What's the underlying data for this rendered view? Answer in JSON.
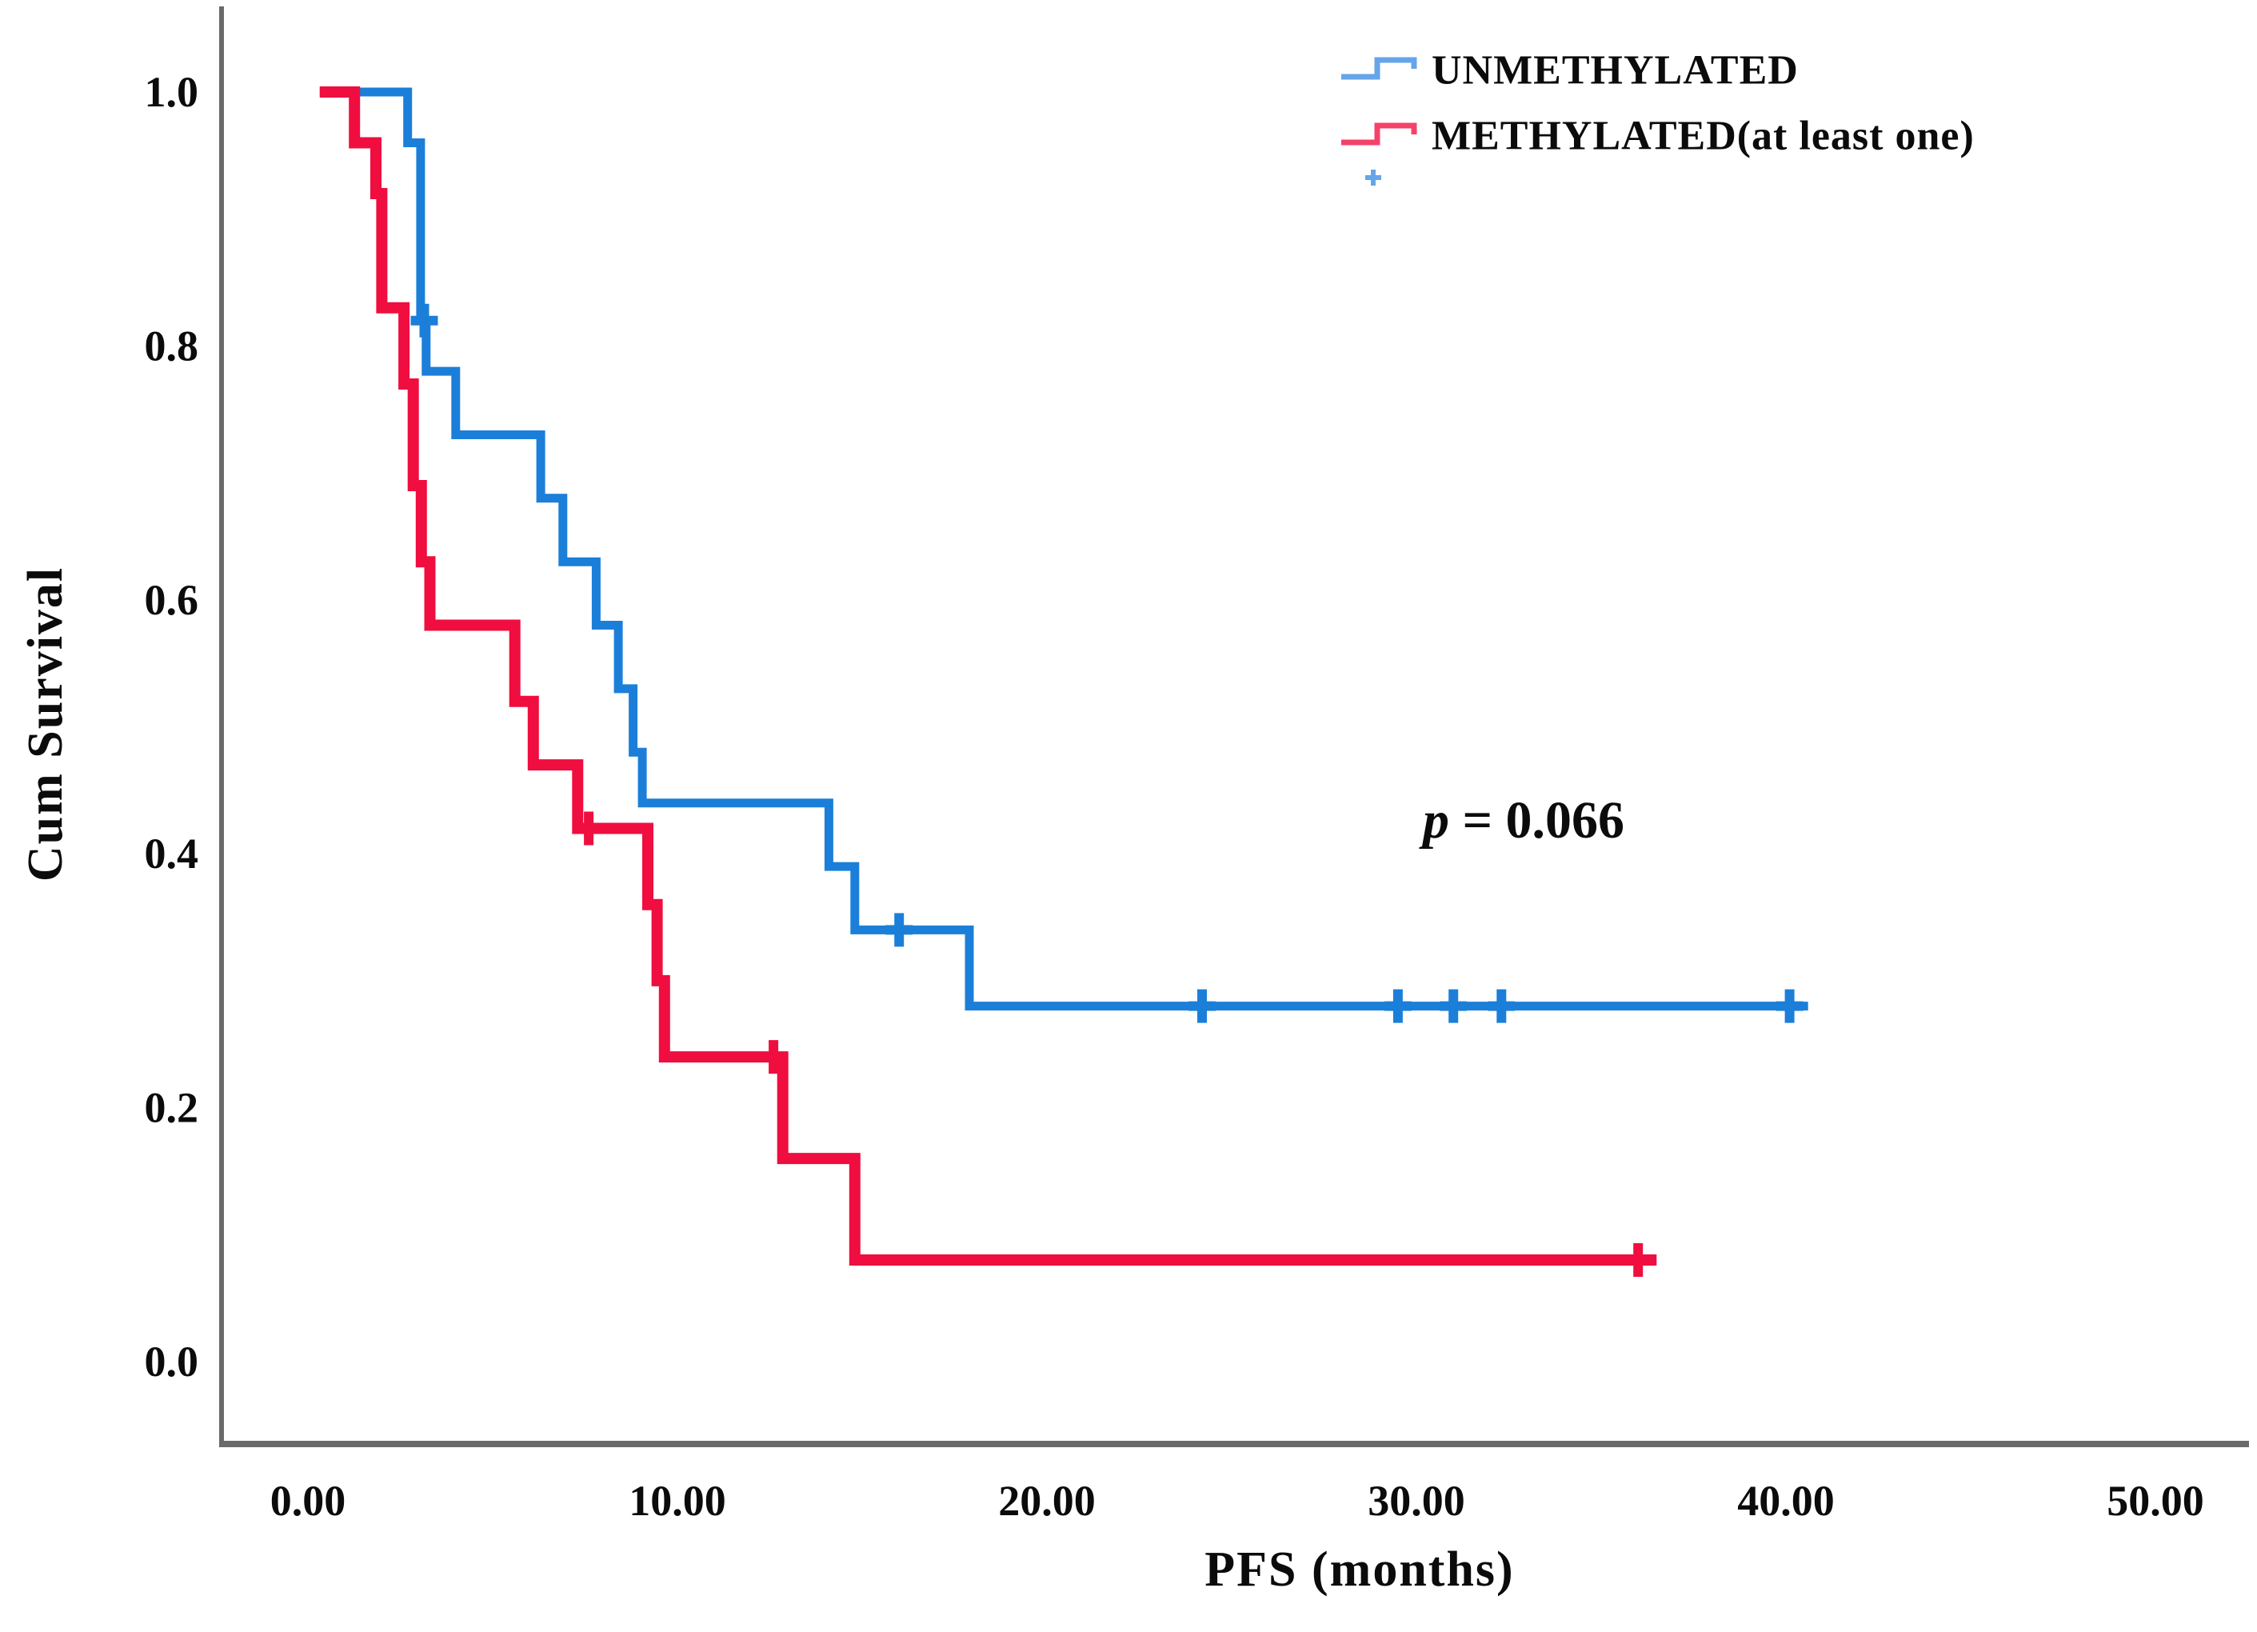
{
  "page": {
    "background": "#ffffff"
  },
  "chart_data": {
    "type": "line",
    "chart_kind": "kaplan_meier_step",
    "title": "",
    "xlabel": "PFS (months)",
    "ylabel": "Cum Survival",
    "xlim": [
      0,
      50
    ],
    "ylim": [
      0.0,
      1.0
    ],
    "grid": false,
    "legend_position": "top-right",
    "axis_color": "#6a6a6a",
    "p_value_annotation": {
      "symbol": "p",
      "text": " = 0.066"
    },
    "x_ticks": [
      {
        "v": 0,
        "label": "0.00"
      },
      {
        "v": 10,
        "label": "10.00"
      },
      {
        "v": 20,
        "label": "20.00"
      },
      {
        "v": 30,
        "label": "30.00"
      },
      {
        "v": 40,
        "label": "40.00"
      },
      {
        "v": 50,
        "label": "50.00"
      }
    ],
    "y_ticks": [
      {
        "v": 1.0,
        "label": "1.0"
      },
      {
        "v": 0.8,
        "label": "0.8"
      },
      {
        "v": 0.6,
        "label": "0.6"
      },
      {
        "v": 0.4,
        "label": "0.4"
      },
      {
        "v": 0.2,
        "label": "0.2"
      },
      {
        "v": 0.0,
        "label": "0.0"
      }
    ],
    "series": [
      {
        "name": "UNMETHYLATED",
        "color": "#1b7fd9",
        "legend_color": "#66a5e8",
        "points": [
          [
            0.32,
            1.0
          ],
          [
            2.7,
            0.96
          ],
          [
            3.05,
            0.82
          ],
          [
            3.2,
            0.78
          ],
          [
            4.0,
            0.73
          ],
          [
            6.3,
            0.68
          ],
          [
            6.9,
            0.63
          ],
          [
            7.8,
            0.58
          ],
          [
            8.4,
            0.53
          ],
          [
            8.8,
            0.48
          ],
          [
            9.05,
            0.44
          ],
          [
            14.1,
            0.39
          ],
          [
            14.8,
            0.34
          ],
          [
            17.9,
            0.28
          ],
          [
            40.6,
            0.28
          ]
        ],
        "censors": [
          [
            3.15,
            0.82
          ],
          [
            16.0,
            0.34
          ],
          [
            24.2,
            0.28
          ],
          [
            29.5,
            0.28
          ],
          [
            31.0,
            0.28
          ],
          [
            32.3,
            0.28
          ],
          [
            40.1,
            0.28
          ]
        ]
      },
      {
        "name": "METHYLATED(at least one)",
        "color": "#ef0e3f",
        "legend_color": "#f4436b",
        "points": [
          [
            0.32,
            1.0
          ],
          [
            1.26,
            0.96
          ],
          [
            1.84,
            0.92
          ],
          [
            2.0,
            0.83
          ],
          [
            2.6,
            0.77
          ],
          [
            2.85,
            0.69
          ],
          [
            3.07,
            0.63
          ],
          [
            3.3,
            0.58
          ],
          [
            5.6,
            0.52
          ],
          [
            6.1,
            0.47
          ],
          [
            7.3,
            0.42
          ],
          [
            9.2,
            0.36
          ],
          [
            9.45,
            0.3
          ],
          [
            9.65,
            0.24
          ],
          [
            12.85,
            0.16
          ],
          [
            14.8,
            0.08
          ],
          [
            36.5,
            0.08
          ]
        ],
        "censors": [
          [
            7.6,
            0.42
          ],
          [
            12.6,
            0.24
          ],
          [
            36.0,
            0.08
          ]
        ]
      }
    ]
  }
}
